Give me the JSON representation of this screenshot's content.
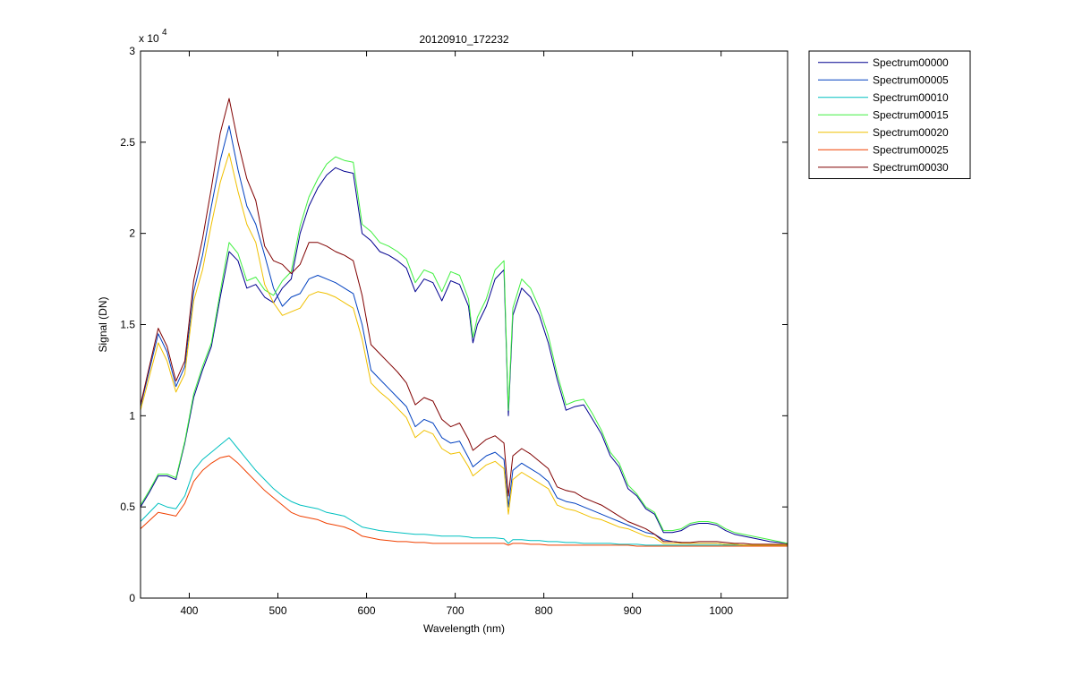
{
  "chart_data": {
    "type": "line",
    "title": "20120910_172232",
    "xlabel": "Wavelength (nm)",
    "ylabel": "Signal (DN)",
    "xlim": [
      345,
      1075
    ],
    "ylim": [
      0,
      30000
    ],
    "xticks": [
      400,
      500,
      600,
      700,
      800,
      900,
      1000
    ],
    "yticks": [
      0,
      5000,
      10000,
      15000,
      20000,
      25000,
      30000
    ],
    "xtick_labels": [
      "400",
      "500",
      "600",
      "700",
      "800",
      "900",
      "1000"
    ],
    "ytick_labels": [
      "0",
      "0.5",
      "1",
      "1.5",
      "2",
      "2.5",
      "3"
    ],
    "y_exponent_label": "x 10",
    "y_exponent_power": "4",
    "grid": false,
    "legend_position": "outside-top-right",
    "series": [
      {
        "name": "Spectrum00000",
        "color": "#00008f",
        "x": [
          345,
          355,
          365,
          375,
          385,
          395,
          405,
          415,
          425,
          435,
          445,
          455,
          465,
          475,
          485,
          495,
          505,
          515,
          525,
          535,
          545,
          555,
          565,
          575,
          585,
          595,
          605,
          615,
          625,
          635,
          645,
          655,
          665,
          675,
          685,
          695,
          705,
          715,
          720,
          725,
          735,
          745,
          755,
          760,
          765,
          775,
          785,
          795,
          805,
          815,
          825,
          835,
          845,
          855,
          865,
          875,
          885,
          895,
          905,
          915,
          925,
          935,
          945,
          955,
          965,
          975,
          985,
          995,
          1005,
          1015,
          1025,
          1035,
          1045,
          1055,
          1075
        ],
        "values": [
          5000,
          5800,
          6700,
          6700,
          6500,
          8500,
          11000,
          12500,
          13800,
          16500,
          19000,
          18500,
          17000,
          17200,
          16500,
          16200,
          17000,
          17500,
          20000,
          21500,
          22500,
          23200,
          23600,
          23400,
          23300,
          20000,
          19600,
          19000,
          18800,
          18500,
          18100,
          16800,
          17500,
          17300,
          16300,
          17400,
          17200,
          16000,
          14000,
          15000,
          16000,
          17500,
          18000,
          10000,
          15500,
          17000,
          16500,
          15500,
          14000,
          12000,
          10300,
          10500,
          10600,
          9800,
          9000,
          7800,
          7200,
          6000,
          5600,
          4900,
          4600,
          3600,
          3600,
          3700,
          4000,
          4100,
          4100,
          4000,
          3700,
          3500,
          3400,
          3300,
          3200,
          3100,
          3000
        ]
      },
      {
        "name": "Spectrum00005",
        "color": "#0040c0",
        "x": [
          345,
          365,
          375,
          385,
          395,
          405,
          415,
          425,
          435,
          445,
          455,
          465,
          475,
          485,
          495,
          505,
          515,
          525,
          535,
          545,
          555,
          565,
          575,
          585,
          595,
          605,
          615,
          625,
          635,
          645,
          655,
          665,
          675,
          685,
          695,
          705,
          715,
          720,
          725,
          735,
          745,
          755,
          760,
          765,
          775,
          785,
          795,
          805,
          815,
          825,
          835,
          845,
          855,
          865,
          875,
          885,
          895,
          905,
          915,
          925,
          935,
          945,
          955,
          965,
          975,
          985,
          995,
          1005,
          1015,
          1025,
          1035,
          1045,
          1055,
          1075
        ],
        "values": [
          10500,
          14500,
          13500,
          11600,
          12700,
          16800,
          18800,
          21500,
          24000,
          25900,
          23500,
          21500,
          20500,
          18800,
          17000,
          16000,
          16500,
          16700,
          17500,
          17700,
          17500,
          17300,
          17000,
          16700,
          15000,
          12500,
          12000,
          11500,
          11000,
          10500,
          9400,
          9800,
          9600,
          8800,
          8500,
          8600,
          7700,
          7200,
          7400,
          7800,
          8000,
          7600,
          5000,
          7000,
          7400,
          7100,
          6800,
          6400,
          5500,
          5300,
          5200,
          5000,
          4800,
          4600,
          4400,
          4200,
          4000,
          3800,
          3600,
          3500,
          3200,
          3100,
          3050,
          3000,
          3000,
          3000,
          3000,
          2950,
          2950,
          2900,
          2900,
          2900,
          2900,
          2900
        ]
      },
      {
        "name": "Spectrum00010",
        "color": "#00c0c0",
        "x": [
          345,
          365,
          375,
          385,
          395,
          405,
          415,
          425,
          435,
          445,
          455,
          465,
          475,
          485,
          495,
          505,
          515,
          525,
          535,
          545,
          555,
          565,
          575,
          585,
          595,
          605,
          615,
          625,
          635,
          645,
          655,
          665,
          675,
          685,
          695,
          705,
          715,
          720,
          725,
          735,
          745,
          755,
          760,
          765,
          775,
          785,
          795,
          805,
          815,
          825,
          835,
          845,
          855,
          865,
          875,
          885,
          895,
          905,
          915,
          925,
          935,
          945,
          955,
          965,
          975,
          985,
          995,
          1005,
          1015,
          1025,
          1035,
          1045,
          1055,
          1075
        ],
        "values": [
          4200,
          5200,
          5000,
          4900,
          5600,
          7000,
          7600,
          8000,
          8400,
          8800,
          8200,
          7600,
          7000,
          6500,
          6000,
          5600,
          5300,
          5100,
          5000,
          4900,
          4700,
          4600,
          4500,
          4200,
          3900,
          3800,
          3700,
          3650,
          3600,
          3550,
          3500,
          3500,
          3450,
          3400,
          3400,
          3400,
          3350,
          3300,
          3300,
          3300,
          3300,
          3250,
          3000,
          3200,
          3200,
          3150,
          3150,
          3100,
          3100,
          3050,
          3050,
          3000,
          3000,
          3000,
          3000,
          2950,
          2950,
          2950,
          2900,
          2900,
          2900,
          2900,
          2900,
          2900,
          2900,
          2900,
          2900,
          2900,
          2900,
          2900,
          2900,
          2900,
          2900,
          2900
        ]
      },
      {
        "name": "Spectrum00015",
        "color": "#40f040",
        "x": [
          345,
          355,
          365,
          375,
          385,
          395,
          405,
          415,
          425,
          435,
          445,
          455,
          465,
          475,
          485,
          495,
          505,
          515,
          525,
          535,
          545,
          555,
          565,
          575,
          585,
          595,
          605,
          615,
          625,
          635,
          645,
          655,
          665,
          675,
          685,
          695,
          705,
          715,
          720,
          725,
          735,
          745,
          755,
          760,
          765,
          775,
          785,
          795,
          805,
          815,
          825,
          835,
          845,
          855,
          865,
          875,
          885,
          895,
          905,
          915,
          925,
          935,
          945,
          955,
          965,
          975,
          985,
          995,
          1005,
          1015,
          1025,
          1035,
          1045,
          1055,
          1075
        ],
        "values": [
          5100,
          5900,
          6800,
          6800,
          6600,
          8600,
          11200,
          12700,
          14000,
          16800,
          19500,
          18900,
          17400,
          17600,
          16900,
          16600,
          17400,
          17900,
          20400,
          22000,
          23000,
          23800,
          24200,
          24000,
          23900,
          20500,
          20100,
          19500,
          19300,
          19000,
          18600,
          17300,
          18000,
          17800,
          16800,
          17900,
          17700,
          16400,
          14300,
          15400,
          16400,
          18000,
          18500,
          10300,
          15900,
          17500,
          17000,
          15900,
          14400,
          12300,
          10600,
          10800,
          10900,
          10100,
          9200,
          8000,
          7400,
          6200,
          5700,
          5000,
          4700,
          3700,
          3700,
          3800,
          4100,
          4200,
          4200,
          4100,
          3800,
          3600,
          3500,
          3400,
          3300,
          3200,
          3000
        ]
      },
      {
        "name": "Spectrum00020",
        "color": "#f0c000",
        "x": [
          345,
          365,
          375,
          385,
          395,
          405,
          415,
          425,
          435,
          445,
          455,
          465,
          475,
          485,
          495,
          505,
          515,
          525,
          535,
          545,
          555,
          565,
          575,
          585,
          595,
          605,
          615,
          625,
          635,
          645,
          655,
          665,
          675,
          685,
          695,
          705,
          715,
          720,
          725,
          735,
          745,
          755,
          760,
          765,
          775,
          785,
          795,
          805,
          815,
          825,
          835,
          845,
          855,
          865,
          875,
          885,
          895,
          905,
          915,
          925,
          935,
          945,
          955,
          965,
          975,
          985,
          995,
          1005,
          1015,
          1025,
          1035,
          1045,
          1055,
          1075
        ],
        "values": [
          10300,
          14000,
          13000,
          11300,
          12300,
          16300,
          18000,
          20500,
          22800,
          24400,
          22300,
          20500,
          19500,
          17200,
          16200,
          15500,
          15700,
          15900,
          16600,
          16800,
          16700,
          16500,
          16200,
          15900,
          14200,
          11800,
          11300,
          10900,
          10400,
          9900,
          8800,
          9200,
          9000,
          8200,
          7900,
          8000,
          7200,
          6700,
          6900,
          7300,
          7500,
          7100,
          4600,
          6500,
          6900,
          6600,
          6300,
          6000,
          5100,
          4900,
          4800,
          4600,
          4400,
          4300,
          4100,
          3900,
          3800,
          3600,
          3400,
          3300,
          3000,
          3000,
          3000,
          3000,
          3000,
          3000,
          3000,
          2950,
          2950,
          2900,
          2900,
          2900,
          2900,
          2900
        ]
      },
      {
        "name": "Spectrum00025",
        "color": "#f04000",
        "x": [
          345,
          365,
          375,
          385,
          395,
          405,
          415,
          425,
          435,
          445,
          455,
          465,
          475,
          485,
          495,
          505,
          515,
          525,
          535,
          545,
          555,
          565,
          575,
          585,
          595,
          605,
          615,
          625,
          635,
          645,
          655,
          665,
          675,
          685,
          695,
          705,
          715,
          720,
          725,
          735,
          745,
          755,
          760,
          765,
          775,
          785,
          795,
          805,
          815,
          825,
          835,
          845,
          855,
          865,
          875,
          885,
          895,
          905,
          915,
          925,
          935,
          945,
          955,
          965,
          975,
          985,
          995,
          1005,
          1015,
          1025,
          1035,
          1045,
          1055,
          1075
        ],
        "values": [
          3800,
          4700,
          4600,
          4500,
          5200,
          6400,
          7000,
          7400,
          7700,
          7800,
          7400,
          6900,
          6400,
          5900,
          5500,
          5100,
          4700,
          4500,
          4400,
          4300,
          4100,
          4000,
          3900,
          3700,
          3400,
          3300,
          3200,
          3150,
          3100,
          3100,
          3050,
          3050,
          3000,
          3000,
          3000,
          3000,
          3000,
          3000,
          3000,
          3000,
          3000,
          3000,
          2900,
          3000,
          3000,
          2950,
          2950,
          2900,
          2900,
          2900,
          2900,
          2900,
          2900,
          2900,
          2900,
          2900,
          2900,
          2850,
          2850,
          2850,
          2850,
          2850,
          2850,
          2850,
          2850,
          2850,
          2850,
          2850,
          2850,
          2850,
          2850,
          2850,
          2850,
          2850
        ]
      },
      {
        "name": "Spectrum00030",
        "color": "#800000",
        "x": [
          345,
          365,
          375,
          385,
          395,
          405,
          415,
          425,
          435,
          445,
          455,
          465,
          475,
          485,
          495,
          505,
          515,
          525,
          535,
          545,
          555,
          565,
          575,
          585,
          595,
          605,
          615,
          625,
          635,
          645,
          655,
          665,
          675,
          685,
          695,
          705,
          715,
          720,
          725,
          735,
          745,
          755,
          760,
          765,
          775,
          785,
          795,
          805,
          815,
          825,
          835,
          845,
          855,
          865,
          875,
          885,
          895,
          905,
          915,
          925,
          935,
          945,
          955,
          965,
          975,
          985,
          995,
          1005,
          1015,
          1025,
          1035,
          1045,
          1055,
          1075
        ],
        "values": [
          10600,
          14800,
          13800,
          11900,
          13000,
          17400,
          19700,
          22500,
          25500,
          27400,
          25000,
          23000,
          21800,
          19300,
          18500,
          18300,
          17800,
          18300,
          19500,
          19500,
          19300,
          19000,
          18800,
          18500,
          16600,
          13900,
          13400,
          12900,
          12400,
          11800,
          10600,
          11000,
          10800,
          9800,
          9400,
          9600,
          8700,
          8100,
          8300,
          8700,
          8900,
          8500,
          5600,
          7800,
          8200,
          7900,
          7500,
          7100,
          6100,
          5900,
          5800,
          5500,
          5300,
          5100,
          4800,
          4500,
          4200,
          4000,
          3800,
          3500,
          3100,
          3100,
          3050,
          3050,
          3100,
          3100,
          3100,
          3050,
          3000,
          3000,
          2950,
          2950,
          2950,
          2950
        ]
      }
    ]
  }
}
